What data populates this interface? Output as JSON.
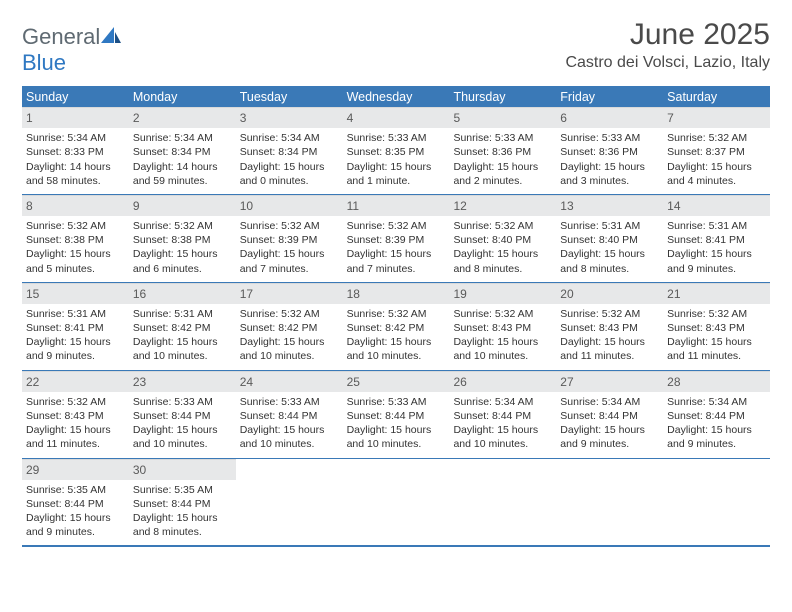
{
  "logo": {
    "text1": "General",
    "text2": "Blue"
  },
  "title": "June 2025",
  "location": "Castro dei Volsci, Lazio, Italy",
  "colors": {
    "header_bg": "#3a79b7",
    "header_text": "#ffffff",
    "daynum_bg": "#e7e8e9",
    "page_bg": "#ffffff",
    "logo_gray": "#5f6a72",
    "logo_blue": "#2f78c2"
  },
  "days_of_week": [
    "Sunday",
    "Monday",
    "Tuesday",
    "Wednesday",
    "Thursday",
    "Friday",
    "Saturday"
  ],
  "weeks": [
    [
      {
        "n": "1",
        "sr": "Sunrise: 5:34 AM",
        "ss": "Sunset: 8:33 PM",
        "dl": "Daylight: 14 hours and 58 minutes."
      },
      {
        "n": "2",
        "sr": "Sunrise: 5:34 AM",
        "ss": "Sunset: 8:34 PM",
        "dl": "Daylight: 14 hours and 59 minutes."
      },
      {
        "n": "3",
        "sr": "Sunrise: 5:34 AM",
        "ss": "Sunset: 8:34 PM",
        "dl": "Daylight: 15 hours and 0 minutes."
      },
      {
        "n": "4",
        "sr": "Sunrise: 5:33 AM",
        "ss": "Sunset: 8:35 PM",
        "dl": "Daylight: 15 hours and 1 minute."
      },
      {
        "n": "5",
        "sr": "Sunrise: 5:33 AM",
        "ss": "Sunset: 8:36 PM",
        "dl": "Daylight: 15 hours and 2 minutes."
      },
      {
        "n": "6",
        "sr": "Sunrise: 5:33 AM",
        "ss": "Sunset: 8:36 PM",
        "dl": "Daylight: 15 hours and 3 minutes."
      },
      {
        "n": "7",
        "sr": "Sunrise: 5:32 AM",
        "ss": "Sunset: 8:37 PM",
        "dl": "Daylight: 15 hours and 4 minutes."
      }
    ],
    [
      {
        "n": "8",
        "sr": "Sunrise: 5:32 AM",
        "ss": "Sunset: 8:38 PM",
        "dl": "Daylight: 15 hours and 5 minutes."
      },
      {
        "n": "9",
        "sr": "Sunrise: 5:32 AM",
        "ss": "Sunset: 8:38 PM",
        "dl": "Daylight: 15 hours and 6 minutes."
      },
      {
        "n": "10",
        "sr": "Sunrise: 5:32 AM",
        "ss": "Sunset: 8:39 PM",
        "dl": "Daylight: 15 hours and 7 minutes."
      },
      {
        "n": "11",
        "sr": "Sunrise: 5:32 AM",
        "ss": "Sunset: 8:39 PM",
        "dl": "Daylight: 15 hours and 7 minutes."
      },
      {
        "n": "12",
        "sr": "Sunrise: 5:32 AM",
        "ss": "Sunset: 8:40 PM",
        "dl": "Daylight: 15 hours and 8 minutes."
      },
      {
        "n": "13",
        "sr": "Sunrise: 5:31 AM",
        "ss": "Sunset: 8:40 PM",
        "dl": "Daylight: 15 hours and 8 minutes."
      },
      {
        "n": "14",
        "sr": "Sunrise: 5:31 AM",
        "ss": "Sunset: 8:41 PM",
        "dl": "Daylight: 15 hours and 9 minutes."
      }
    ],
    [
      {
        "n": "15",
        "sr": "Sunrise: 5:31 AM",
        "ss": "Sunset: 8:41 PM",
        "dl": "Daylight: 15 hours and 9 minutes."
      },
      {
        "n": "16",
        "sr": "Sunrise: 5:31 AM",
        "ss": "Sunset: 8:42 PM",
        "dl": "Daylight: 15 hours and 10 minutes."
      },
      {
        "n": "17",
        "sr": "Sunrise: 5:32 AM",
        "ss": "Sunset: 8:42 PM",
        "dl": "Daylight: 15 hours and 10 minutes."
      },
      {
        "n": "18",
        "sr": "Sunrise: 5:32 AM",
        "ss": "Sunset: 8:42 PM",
        "dl": "Daylight: 15 hours and 10 minutes."
      },
      {
        "n": "19",
        "sr": "Sunrise: 5:32 AM",
        "ss": "Sunset: 8:43 PM",
        "dl": "Daylight: 15 hours and 10 minutes."
      },
      {
        "n": "20",
        "sr": "Sunrise: 5:32 AM",
        "ss": "Sunset: 8:43 PM",
        "dl": "Daylight: 15 hours and 11 minutes."
      },
      {
        "n": "21",
        "sr": "Sunrise: 5:32 AM",
        "ss": "Sunset: 8:43 PM",
        "dl": "Daylight: 15 hours and 11 minutes."
      }
    ],
    [
      {
        "n": "22",
        "sr": "Sunrise: 5:32 AM",
        "ss": "Sunset: 8:43 PM",
        "dl": "Daylight: 15 hours and 11 minutes."
      },
      {
        "n": "23",
        "sr": "Sunrise: 5:33 AM",
        "ss": "Sunset: 8:44 PM",
        "dl": "Daylight: 15 hours and 10 minutes."
      },
      {
        "n": "24",
        "sr": "Sunrise: 5:33 AM",
        "ss": "Sunset: 8:44 PM",
        "dl": "Daylight: 15 hours and 10 minutes."
      },
      {
        "n": "25",
        "sr": "Sunrise: 5:33 AM",
        "ss": "Sunset: 8:44 PM",
        "dl": "Daylight: 15 hours and 10 minutes."
      },
      {
        "n": "26",
        "sr": "Sunrise: 5:34 AM",
        "ss": "Sunset: 8:44 PM",
        "dl": "Daylight: 15 hours and 10 minutes."
      },
      {
        "n": "27",
        "sr": "Sunrise: 5:34 AM",
        "ss": "Sunset: 8:44 PM",
        "dl": "Daylight: 15 hours and 9 minutes."
      },
      {
        "n": "28",
        "sr": "Sunrise: 5:34 AM",
        "ss": "Sunset: 8:44 PM",
        "dl": "Daylight: 15 hours and 9 minutes."
      }
    ],
    [
      {
        "n": "29",
        "sr": "Sunrise: 5:35 AM",
        "ss": "Sunset: 8:44 PM",
        "dl": "Daylight: 15 hours and 9 minutes."
      },
      {
        "n": "30",
        "sr": "Sunrise: 5:35 AM",
        "ss": "Sunset: 8:44 PM",
        "dl": "Daylight: 15 hours and 8 minutes."
      },
      null,
      null,
      null,
      null,
      null
    ]
  ]
}
